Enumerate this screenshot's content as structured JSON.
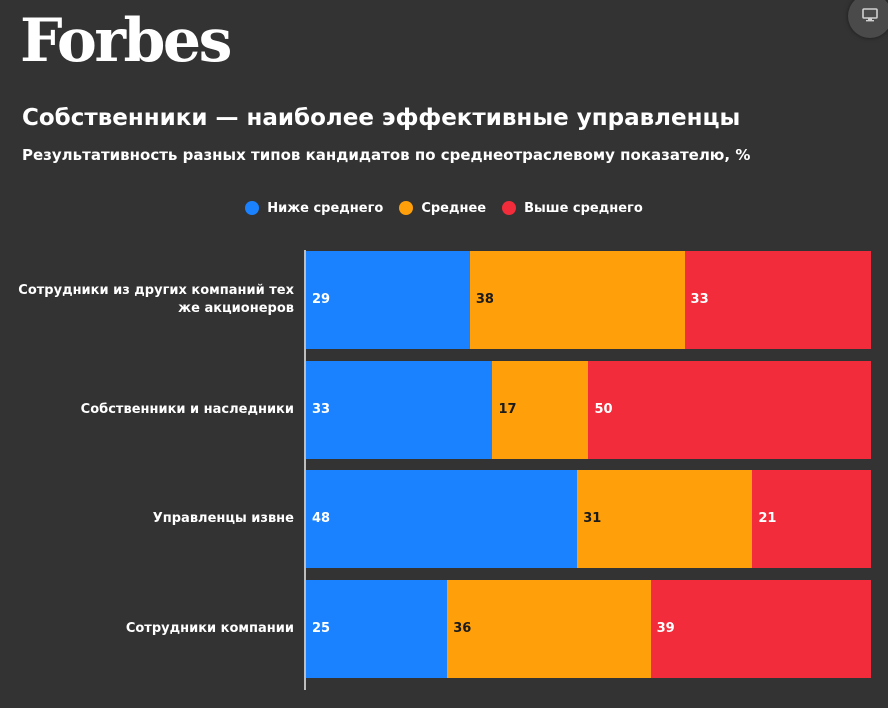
{
  "brand": {
    "name": "Forbes"
  },
  "chart_data": {
    "type": "bar",
    "orientation": "horizontal",
    "stacked": true,
    "title": "Собственники — наиболее эффективные управленцы",
    "subtitle": "Результативность разных типов кандидатов по среднеотраслевому показателю, %",
    "xlim": [
      0,
      100
    ],
    "categories": [
      "Сотрудники из других компаний тех же акционеров",
      "Собственники и наследники",
      "Управленцы извне",
      "Сотрудники компании"
    ],
    "series": [
      {
        "name": "Ниже среднего",
        "color": "#1a82ff",
        "label_color": "#ffffff",
        "values": [
          29,
          33,
          48,
          25
        ]
      },
      {
        "name": "Среднее",
        "color": "#ff9f0a",
        "label_color": "#1b1b1b",
        "values": [
          38,
          17,
          31,
          36
        ]
      },
      {
        "name": "Выше среднего",
        "color": "#f22c3a",
        "label_color": "#ffffff",
        "values": [
          33,
          50,
          21,
          39
        ]
      }
    ],
    "legend_position": "top",
    "grid": false
  },
  "colors": {
    "background": "#333333",
    "text": "#ffffff",
    "axis": "#bdbdbd"
  },
  "icons": {
    "corner_button": "monitor-icon"
  }
}
